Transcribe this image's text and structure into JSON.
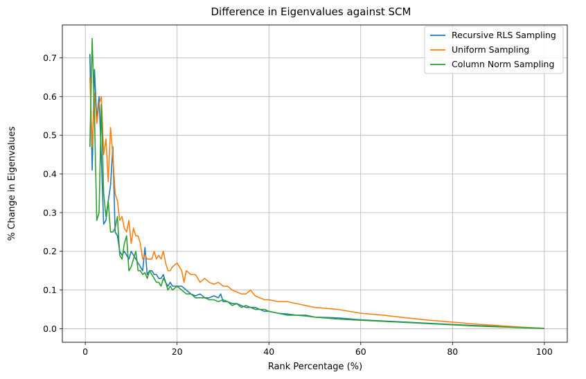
{
  "chart_data": {
    "type": "line",
    "title": "Difference in Eigenvalues against SCM",
    "xlabel": "Rank Percentage (%)",
    "ylabel": "% Change in Eigenvalues",
    "xlim": [
      -5,
      105
    ],
    "ylim": [
      -0.035,
      0.785
    ],
    "xticks": [
      0,
      20,
      40,
      60,
      80,
      100
    ],
    "yticks": [
      0.0,
      0.1,
      0.2,
      0.3,
      0.4,
      0.5,
      0.6,
      0.7
    ],
    "xtick_labels": [
      "0",
      "20",
      "40",
      "60",
      "80",
      "100"
    ],
    "ytick_labels": [
      "0.0",
      "0.1",
      "0.2",
      "0.3",
      "0.4",
      "0.5",
      "0.6",
      "0.7"
    ],
    "grid": true,
    "legend_position": "top-right",
    "series": [
      {
        "name": "Recursive RLS Sampling",
        "color": "#1f77b4",
        "points": [
          [
            1.0,
            0.71
          ],
          [
            1.5,
            0.41
          ],
          [
            2.0,
            0.67
          ],
          [
            2.5,
            0.54
          ],
          [
            3.0,
            0.6
          ],
          [
            3.5,
            0.44
          ],
          [
            4.0,
            0.27
          ],
          [
            4.5,
            0.28
          ],
          [
            5.0,
            0.33
          ],
          [
            5.5,
            0.37
          ],
          [
            6.0,
            0.47
          ],
          [
            6.5,
            0.25
          ],
          [
            7.0,
            0.24
          ],
          [
            7.5,
            0.2
          ],
          [
            8.0,
            0.19
          ],
          [
            8.5,
            0.2
          ],
          [
            9.0,
            0.19
          ],
          [
            9.5,
            0.18
          ],
          [
            10.0,
            0.2
          ],
          [
            10.5,
            0.19
          ],
          [
            11.0,
            0.18
          ],
          [
            11.5,
            0.17
          ],
          [
            12.0,
            0.16
          ],
          [
            12.5,
            0.15
          ],
          [
            13.0,
            0.21
          ],
          [
            13.5,
            0.14
          ],
          [
            14.0,
            0.15
          ],
          [
            14.5,
            0.15
          ],
          [
            15.0,
            0.14
          ],
          [
            15.5,
            0.14
          ],
          [
            16.0,
            0.13
          ],
          [
            16.5,
            0.13
          ],
          [
            17.0,
            0.14
          ],
          [
            17.5,
            0.12
          ],
          [
            18.0,
            0.11
          ],
          [
            18.5,
            0.12
          ],
          [
            19.0,
            0.11
          ],
          [
            20.0,
            0.11
          ],
          [
            21.0,
            0.11
          ],
          [
            22.0,
            0.1
          ],
          [
            23.0,
            0.09
          ],
          [
            24.0,
            0.085
          ],
          [
            25.0,
            0.09
          ],
          [
            26.0,
            0.08
          ],
          [
            27.0,
            0.08
          ],
          [
            28.0,
            0.085
          ],
          [
            29.0,
            0.08
          ],
          [
            29.5,
            0.09
          ],
          [
            30.0,
            0.07
          ],
          [
            31.0,
            0.07
          ],
          [
            32.0,
            0.065
          ],
          [
            33.0,
            0.065
          ],
          [
            34.0,
            0.06
          ],
          [
            35.0,
            0.055
          ],
          [
            36.0,
            0.055
          ],
          [
            37.0,
            0.055
          ],
          [
            38.0,
            0.05
          ],
          [
            39.0,
            0.045
          ],
          [
            40.0,
            0.045
          ],
          [
            42.0,
            0.04
          ],
          [
            44.0,
            0.038
          ],
          [
            46.0,
            0.035
          ],
          [
            48.0,
            0.035
          ],
          [
            50.0,
            0.03
          ],
          [
            55.0,
            0.028
          ],
          [
            60.0,
            0.023
          ],
          [
            65.0,
            0.02
          ],
          [
            70.0,
            0.017
          ],
          [
            75.0,
            0.014
          ],
          [
            80.0,
            0.011
          ],
          [
            85.0,
            0.008
          ],
          [
            90.0,
            0.006
          ],
          [
            95.0,
            0.003
          ],
          [
            100.0,
            0.001
          ]
        ]
      },
      {
        "name": "Uniform Sampling",
        "color": "#ff7f0e",
        "points": [
          [
            1.0,
            0.65
          ],
          [
            1.5,
            0.47
          ],
          [
            2.0,
            0.61
          ],
          [
            2.5,
            0.53
          ],
          [
            3.0,
            0.58
          ],
          [
            3.5,
            0.6
          ],
          [
            4.0,
            0.45
          ],
          [
            4.5,
            0.49
          ],
          [
            5.0,
            0.38
          ],
          [
            5.5,
            0.52
          ],
          [
            6.0,
            0.45
          ],
          [
            6.5,
            0.35
          ],
          [
            7.0,
            0.33
          ],
          [
            7.5,
            0.28
          ],
          [
            8.0,
            0.29
          ],
          [
            8.5,
            0.26
          ],
          [
            9.0,
            0.25
          ],
          [
            9.5,
            0.28
          ],
          [
            10.0,
            0.22
          ],
          [
            10.5,
            0.26
          ],
          [
            11.0,
            0.24
          ],
          [
            11.5,
            0.24
          ],
          [
            12.0,
            0.22
          ],
          [
            12.5,
            0.18
          ],
          [
            13.0,
            0.19
          ],
          [
            13.5,
            0.18
          ],
          [
            14.0,
            0.18
          ],
          [
            14.5,
            0.18
          ],
          [
            15.0,
            0.2
          ],
          [
            15.5,
            0.18
          ],
          [
            16.0,
            0.19
          ],
          [
            16.5,
            0.18
          ],
          [
            17.0,
            0.2
          ],
          [
            17.5,
            0.17
          ],
          [
            18.0,
            0.15
          ],
          [
            18.5,
            0.15
          ],
          [
            19.0,
            0.16
          ],
          [
            20.0,
            0.17
          ],
          [
            21.0,
            0.15
          ],
          [
            21.5,
            0.12
          ],
          [
            22.0,
            0.15
          ],
          [
            23.0,
            0.14
          ],
          [
            24.0,
            0.14
          ],
          [
            25.0,
            0.12
          ],
          [
            26.0,
            0.13
          ],
          [
            27.0,
            0.12
          ],
          [
            28.0,
            0.115
          ],
          [
            29.0,
            0.12
          ],
          [
            30.0,
            0.11
          ],
          [
            31.0,
            0.11
          ],
          [
            32.0,
            0.1
          ],
          [
            33.0,
            0.095
          ],
          [
            34.0,
            0.09
          ],
          [
            35.0,
            0.09
          ],
          [
            36.0,
            0.1
          ],
          [
            37.0,
            0.085
          ],
          [
            38.0,
            0.08
          ],
          [
            39.0,
            0.075
          ],
          [
            40.0,
            0.075
          ],
          [
            42.0,
            0.07
          ],
          [
            44.0,
            0.07
          ],
          [
            46.0,
            0.065
          ],
          [
            48.0,
            0.06
          ],
          [
            50.0,
            0.055
          ],
          [
            55.0,
            0.05
          ],
          [
            60.0,
            0.04
          ],
          [
            65.0,
            0.035
          ],
          [
            70.0,
            0.028
          ],
          [
            75.0,
            0.022
          ],
          [
            80.0,
            0.017
          ],
          [
            85.0,
            0.012
          ],
          [
            90.0,
            0.008
          ],
          [
            95.0,
            0.004
          ],
          [
            100.0,
            0.001
          ]
        ]
      },
      {
        "name": "Column Norm Sampling",
        "color": "#2ca02c",
        "points": [
          [
            1.0,
            0.47
          ],
          [
            1.5,
            0.75
          ],
          [
            2.0,
            0.55
          ],
          [
            2.5,
            0.28
          ],
          [
            3.0,
            0.3
          ],
          [
            3.5,
            0.58
          ],
          [
            4.0,
            0.35
          ],
          [
            4.5,
            0.29
          ],
          [
            5.0,
            0.33
          ],
          [
            5.5,
            0.25
          ],
          [
            6.0,
            0.25
          ],
          [
            6.5,
            0.26
          ],
          [
            7.0,
            0.29
          ],
          [
            7.5,
            0.19
          ],
          [
            8.0,
            0.18
          ],
          [
            8.5,
            0.22
          ],
          [
            9.0,
            0.24
          ],
          [
            9.5,
            0.15
          ],
          [
            10.0,
            0.16
          ],
          [
            10.5,
            0.18
          ],
          [
            11.0,
            0.2
          ],
          [
            11.5,
            0.15
          ],
          [
            12.0,
            0.15
          ],
          [
            12.5,
            0.14
          ],
          [
            13.0,
            0.145
          ],
          [
            13.5,
            0.13
          ],
          [
            14.0,
            0.15
          ],
          [
            14.5,
            0.14
          ],
          [
            15.0,
            0.13
          ],
          [
            15.5,
            0.12
          ],
          [
            16.0,
            0.12
          ],
          [
            16.5,
            0.11
          ],
          [
            17.0,
            0.13
          ],
          [
            17.5,
            0.12
          ],
          [
            18.0,
            0.1
          ],
          [
            18.5,
            0.11
          ],
          [
            19.0,
            0.1
          ],
          [
            20.0,
            0.11
          ],
          [
            21.0,
            0.1
          ],
          [
            22.0,
            0.09
          ],
          [
            23.0,
            0.09
          ],
          [
            24.0,
            0.08
          ],
          [
            25.0,
            0.08
          ],
          [
            26.0,
            0.08
          ],
          [
            27.0,
            0.075
          ],
          [
            28.0,
            0.075
          ],
          [
            29.0,
            0.07
          ],
          [
            30.0,
            0.075
          ],
          [
            31.0,
            0.07
          ],
          [
            32.0,
            0.06
          ],
          [
            33.0,
            0.065
          ],
          [
            34.0,
            0.055
          ],
          [
            35.0,
            0.06
          ],
          [
            36.0,
            0.055
          ],
          [
            37.0,
            0.05
          ],
          [
            38.0,
            0.05
          ],
          [
            39.0,
            0.05
          ],
          [
            40.0,
            0.045
          ],
          [
            42.0,
            0.04
          ],
          [
            44.0,
            0.035
          ],
          [
            46.0,
            0.035
          ],
          [
            48.0,
            0.033
          ],
          [
            50.0,
            0.03
          ],
          [
            55.0,
            0.025
          ],
          [
            60.0,
            0.022
          ],
          [
            65.0,
            0.019
          ],
          [
            70.0,
            0.016
          ],
          [
            75.0,
            0.013
          ],
          [
            80.0,
            0.01
          ],
          [
            85.0,
            0.007
          ],
          [
            90.0,
            0.005
          ],
          [
            95.0,
            0.003
          ],
          [
            100.0,
            0.001
          ]
        ]
      }
    ]
  }
}
